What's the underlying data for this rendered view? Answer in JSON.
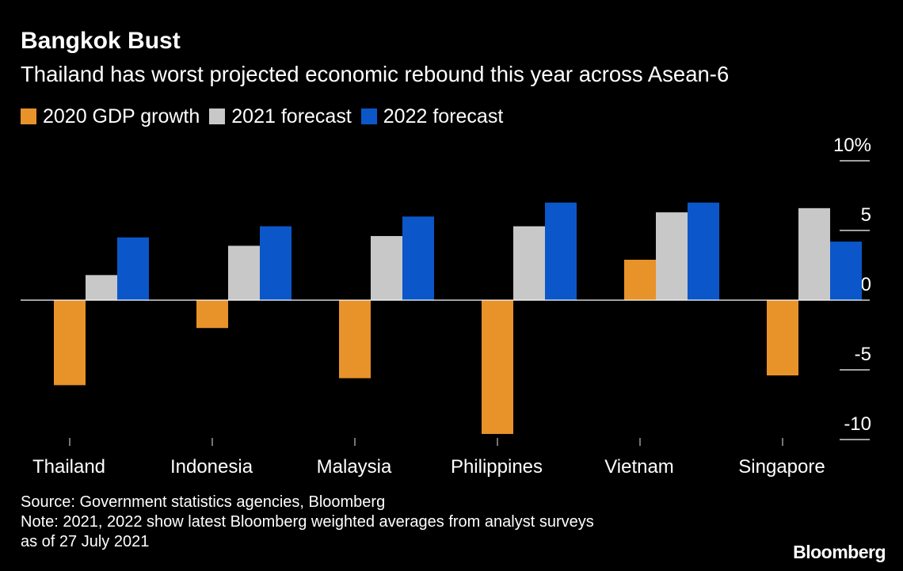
{
  "chart_data": {
    "type": "bar",
    "title": "Bangkok Bust",
    "subtitle": "Thailand has worst projected economic rebound this year across Asean-6",
    "categories": [
      "Thailand",
      "Indonesia",
      "Malaysia",
      "Philippines",
      "Vietnam",
      "Singapore"
    ],
    "series": [
      {
        "name": "2020 GDP growth",
        "color": "#e8922a",
        "values": [
          -6.1,
          -2.0,
          -5.6,
          -9.6,
          2.9,
          -5.4
        ]
      },
      {
        "name": "2021 forecast",
        "color": "#c8c8c8",
        "values": [
          1.8,
          3.9,
          4.6,
          5.3,
          6.3,
          6.6
        ]
      },
      {
        "name": "2022 forecast",
        "color": "#0b57c9",
        "values": [
          4.5,
          5.3,
          6.0,
          7.0,
          7.0,
          4.2
        ]
      }
    ],
    "y_ticks": [
      "10%",
      "5",
      "0",
      "-5",
      "-10"
    ],
    "y_tick_values": [
      10,
      5,
      0,
      -5,
      -10
    ],
    "ylim": [
      -10.2,
      10
    ],
    "axis_position": "right",
    "grid": false
  },
  "footer": {
    "source": "Source: Government statistics agencies, Bloomberg",
    "note_line1": "Note: 2021, 2022 show latest Bloomberg weighted averages from analyst surveys",
    "note_line2": "as of 27 July 2021"
  },
  "logo": {
    "text": "Bloomberg"
  }
}
